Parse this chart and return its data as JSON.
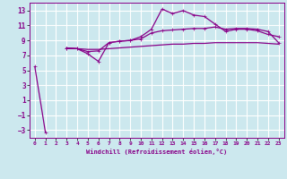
{
  "background_color": "#cce8ee",
  "grid_color": "#aaddcc",
  "line_color": "#880088",
  "xlabel": "Windchill (Refroidissement éolien,°C)",
  "xlim": [
    -0.5,
    23.5
  ],
  "ylim": [
    -4,
    14
  ],
  "yticks": [
    -3,
    -1,
    1,
    3,
    5,
    7,
    9,
    11,
    13
  ],
  "xticks": [
    0,
    1,
    2,
    3,
    4,
    5,
    6,
    7,
    8,
    9,
    10,
    11,
    12,
    13,
    14,
    15,
    16,
    17,
    18,
    19,
    20,
    21,
    22,
    23
  ],
  "line1_x": [
    0,
    1,
    2,
    3,
    4,
    5,
    6,
    7,
    8,
    9,
    10,
    11,
    12,
    13,
    14,
    15,
    16,
    17,
    18,
    19,
    20,
    21,
    22,
    23
  ],
  "line1_y": [
    5.5,
    -3.3,
    null,
    8.0,
    7.9,
    7.2,
    6.2,
    8.7,
    8.9,
    9.0,
    9.5,
    10.5,
    13.2,
    12.6,
    13.0,
    12.4,
    12.2,
    11.2,
    10.2,
    10.5,
    10.5,
    10.3,
    9.8,
    9.5
  ],
  "line2_x": [
    3,
    4,
    5,
    6,
    7,
    8,
    9,
    10,
    11,
    12,
    13,
    14,
    15,
    16,
    17,
    18,
    19,
    20,
    21,
    22,
    23
  ],
  "line2_y": [
    8.0,
    7.9,
    7.5,
    7.6,
    8.7,
    8.9,
    9.0,
    9.2,
    10.0,
    10.3,
    10.4,
    10.5,
    10.6,
    10.6,
    10.8,
    10.5,
    10.6,
    10.6,
    10.5,
    10.2,
    8.7
  ],
  "line3_x": [
    3,
    4,
    5,
    6,
    7,
    8,
    9,
    10,
    11,
    12,
    13,
    14,
    15,
    16,
    17,
    18,
    19,
    20,
    21,
    22,
    23
  ],
  "line3_y": [
    7.9,
    7.9,
    7.8,
    7.8,
    7.9,
    8.0,
    8.1,
    8.2,
    8.3,
    8.4,
    8.5,
    8.5,
    8.6,
    8.6,
    8.7,
    8.7,
    8.7,
    8.7,
    8.7,
    8.6,
    8.5
  ]
}
